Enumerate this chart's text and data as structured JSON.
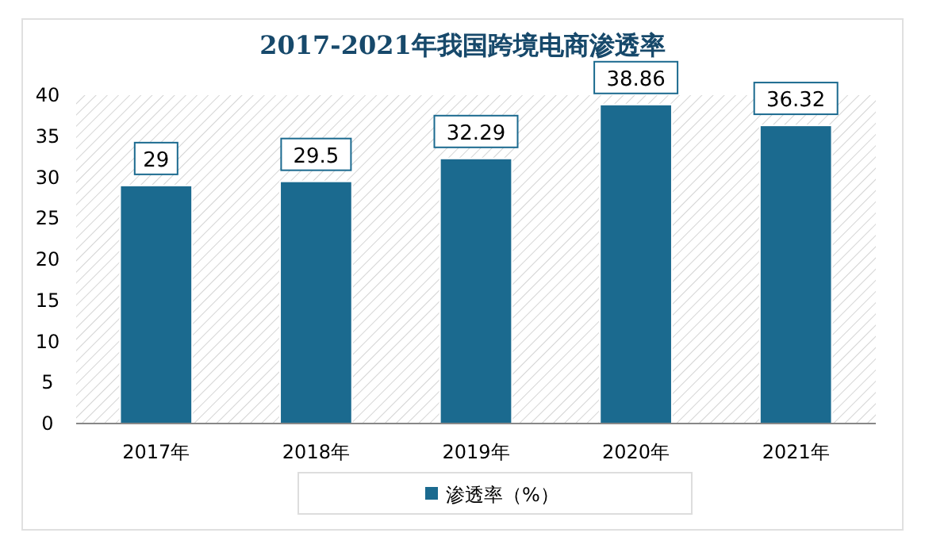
{
  "chart_data": {
    "type": "bar",
    "title": "2017-2021年我国跨境电商渗透率",
    "categories": [
      "2017年",
      "2018年",
      "2019年",
      "2020年",
      "2021年"
    ],
    "series": [
      {
        "name": "渗透率（%）",
        "color": "#1b6a8f",
        "values": [
          29,
          29.5,
          32.29,
          38.86,
          36.32
        ]
      }
    ],
    "ylim": [
      0,
      40
    ],
    "yticks": [
      0,
      5,
      10,
      15,
      20,
      25,
      30,
      35,
      40
    ],
    "data_labels": true,
    "legend": "bottom",
    "grid": false
  }
}
